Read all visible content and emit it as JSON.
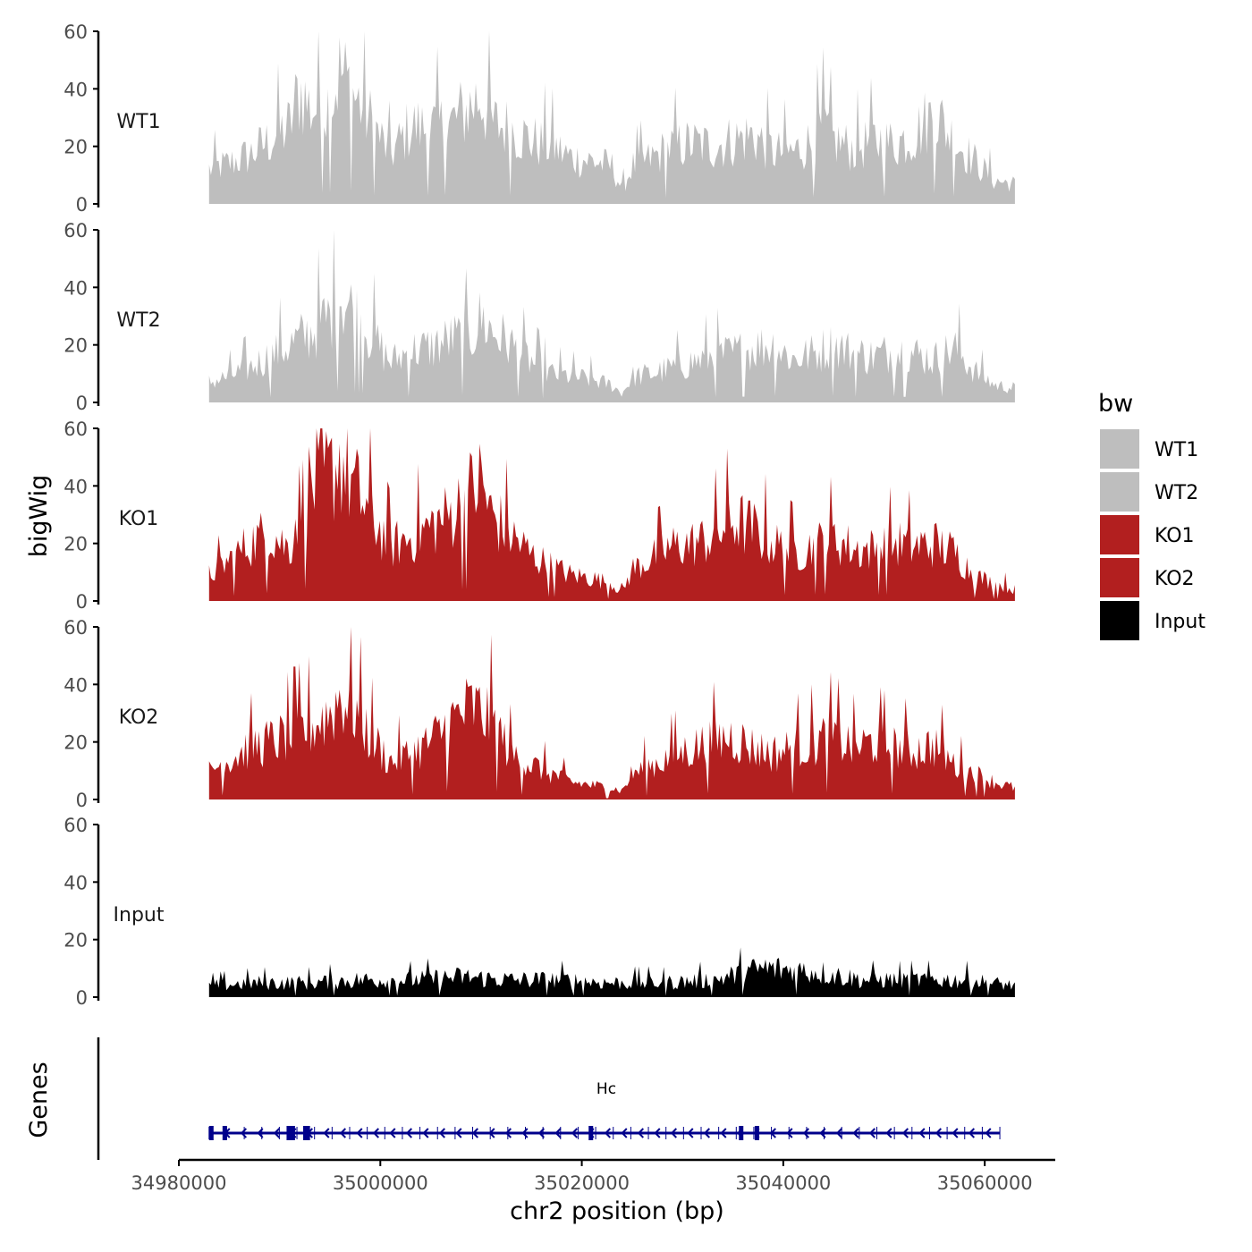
{
  "chart_data": {
    "type": "area",
    "y_axis_label": "bigWig",
    "x_axis_label": "chr2 position (bp)",
    "x_range": [
      34983000,
      35063000
    ],
    "x_axis_limits": [
      34980000,
      35067000
    ],
    "x_ticks": [
      34980000,
      35000000,
      35020000,
      35040000,
      35060000
    ],
    "x_tick_labels": [
      "34980000",
      "35000000",
      "35020000",
      "35040000",
      "35060000"
    ],
    "y_range": [
      0,
      60
    ],
    "y_ticks": [
      0,
      20,
      40,
      60
    ],
    "y_tick_labels": [
      "0",
      "20",
      "40",
      "60"
    ],
    "legend": {
      "title": "bw",
      "position": "right",
      "entries": [
        {
          "label": "WT1",
          "color": "#bebebe"
        },
        {
          "label": "WT2",
          "color": "#bebebe"
        },
        {
          "label": "KO1",
          "color": "#b21f1f"
        },
        {
          "label": "KO2",
          "color": "#b21f1f"
        },
        {
          "label": "Input",
          "color": "#000000"
        }
      ]
    },
    "series": [
      {
        "name": "WT1",
        "color": "#bebebe",
        "x": [
          34983000,
          34985000,
          34987000,
          34989000,
          34991000,
          34992000,
          34993000,
          34995000,
          34996000,
          34997000,
          34999000,
          35001000,
          35003000,
          35005000,
          35007000,
          35009000,
          35010000,
          35011000,
          35013000,
          35015000,
          35017000,
          35019000,
          35021000,
          35023000,
          35024000,
          35025000,
          35027000,
          35029000,
          35031000,
          35033000,
          35035000,
          35037000,
          35039000,
          35041000,
          35043000,
          35044000,
          35045000,
          35047000,
          35049000,
          35051000,
          35053000,
          35055000,
          35057000,
          35059000,
          35061000,
          35063000
        ],
        "values": [
          12,
          14,
          17,
          22,
          27,
          40,
          33,
          35,
          46,
          40,
          29,
          17,
          27,
          26,
          28,
          34,
          38,
          28,
          26,
          22,
          20,
          16,
          15,
          13,
          5,
          13,
          16,
          20,
          21,
          20,
          22,
          24,
          18,
          18,
          22,
          27,
          22,
          19,
          22,
          21,
          24,
          32,
          22,
          15,
          8,
          7
        ]
      },
      {
        "name": "WT2",
        "color": "#bebebe",
        "x": [
          34983000,
          34985000,
          34987000,
          34989000,
          34991000,
          34993000,
          34995000,
          34996000,
          34997000,
          34999000,
          35001000,
          35003000,
          35005000,
          35007000,
          35009000,
          35010000,
          35011000,
          35013000,
          35015000,
          35017000,
          35019000,
          35021000,
          35023000,
          35024000,
          35025000,
          35027000,
          35029000,
          35031000,
          35033000,
          35035000,
          35037000,
          35039000,
          35041000,
          35043000,
          35045000,
          35047000,
          35049000,
          35051000,
          35053000,
          35055000,
          35057000,
          35059000,
          35061000,
          35063000
        ],
        "values": [
          7,
          9,
          12,
          16,
          20,
          24,
          30,
          38,
          33,
          24,
          14,
          18,
          19,
          22,
          23,
          29,
          25,
          20,
          14,
          10,
          9,
          8,
          6,
          3,
          9,
          10,
          12,
          14,
          16,
          17,
          19,
          20,
          15,
          17,
          20,
          17,
          16,
          18,
          17,
          15,
          19,
          11,
          6,
          5
        ]
      },
      {
        "name": "KO1",
        "color": "#b21f1f",
        "x": [
          34983000,
          34985000,
          34987000,
          34989000,
          34991000,
          34992000,
          34993000,
          34995000,
          34996000,
          34997000,
          34999000,
          35001000,
          35003000,
          35005000,
          35007000,
          35009000,
          35010000,
          35011000,
          35013000,
          35015000,
          35017000,
          35019000,
          35021000,
          35023000,
          35024000,
          35025000,
          35027000,
          35029000,
          35031000,
          35033000,
          35035000,
          35037000,
          35039000,
          35041000,
          35043000,
          35045000,
          35047000,
          35049000,
          35051000,
          35053000,
          35055000,
          35057000,
          35059000,
          35061000,
          35063000
        ],
        "values": [
          9,
          14,
          20,
          24,
          18,
          36,
          40,
          44,
          50,
          42,
          30,
          19,
          22,
          26,
          30,
          38,
          42,
          30,
          23,
          16,
          12,
          9,
          8,
          6,
          3,
          11,
          15,
          19,
          20,
          22,
          28,
          25,
          20,
          17,
          19,
          22,
          18,
          18,
          20,
          19,
          20,
          17,
          9,
          6,
          4
        ]
      },
      {
        "name": "KO2",
        "color": "#b21f1f",
        "x": [
          34983000,
          34985000,
          34987000,
          34989000,
          34991000,
          34993000,
          34995000,
          34996000,
          34997000,
          34999000,
          35001000,
          35003000,
          35005000,
          35007000,
          35009000,
          35010000,
          35011000,
          35013000,
          35015000,
          35017000,
          35019000,
          35021000,
          35023000,
          35024000,
          35025000,
          35027000,
          35029000,
          35031000,
          35033000,
          35035000,
          35037000,
          35039000,
          35041000,
          35043000,
          35045000,
          35047000,
          35049000,
          35051000,
          35053000,
          35055000,
          35057000,
          35059000,
          35061000,
          35063000
        ],
        "values": [
          10,
          14,
          18,
          20,
          22,
          25,
          30,
          36,
          34,
          22,
          13,
          16,
          20,
          27,
          32,
          30,
          28,
          16,
          12,
          9,
          6,
          5,
          4,
          3,
          9,
          12,
          15,
          18,
          20,
          22,
          18,
          16,
          18,
          20,
          22,
          18,
          20,
          18,
          17,
          19,
          12,
          9,
          6,
          4
        ]
      },
      {
        "name": "Input",
        "color": "#000000",
        "x": [
          34983000,
          34988000,
          34993000,
          34998000,
          35003000,
          35008000,
          35013000,
          35018000,
          35023000,
          35028000,
          35033000,
          35038000,
          35043000,
          35048000,
          35053000,
          35058000,
          35063000
        ],
        "values": [
          4,
          5,
          5,
          6,
          6,
          7,
          6,
          6,
          5,
          5,
          6,
          10,
          9,
          6,
          6,
          6,
          4
        ]
      }
    ],
    "genes_track": {
      "label": "Genes",
      "gene_name": "Hc",
      "strand": "-",
      "start": 34983000,
      "end": 35061500,
      "color": "#00008b"
    }
  }
}
